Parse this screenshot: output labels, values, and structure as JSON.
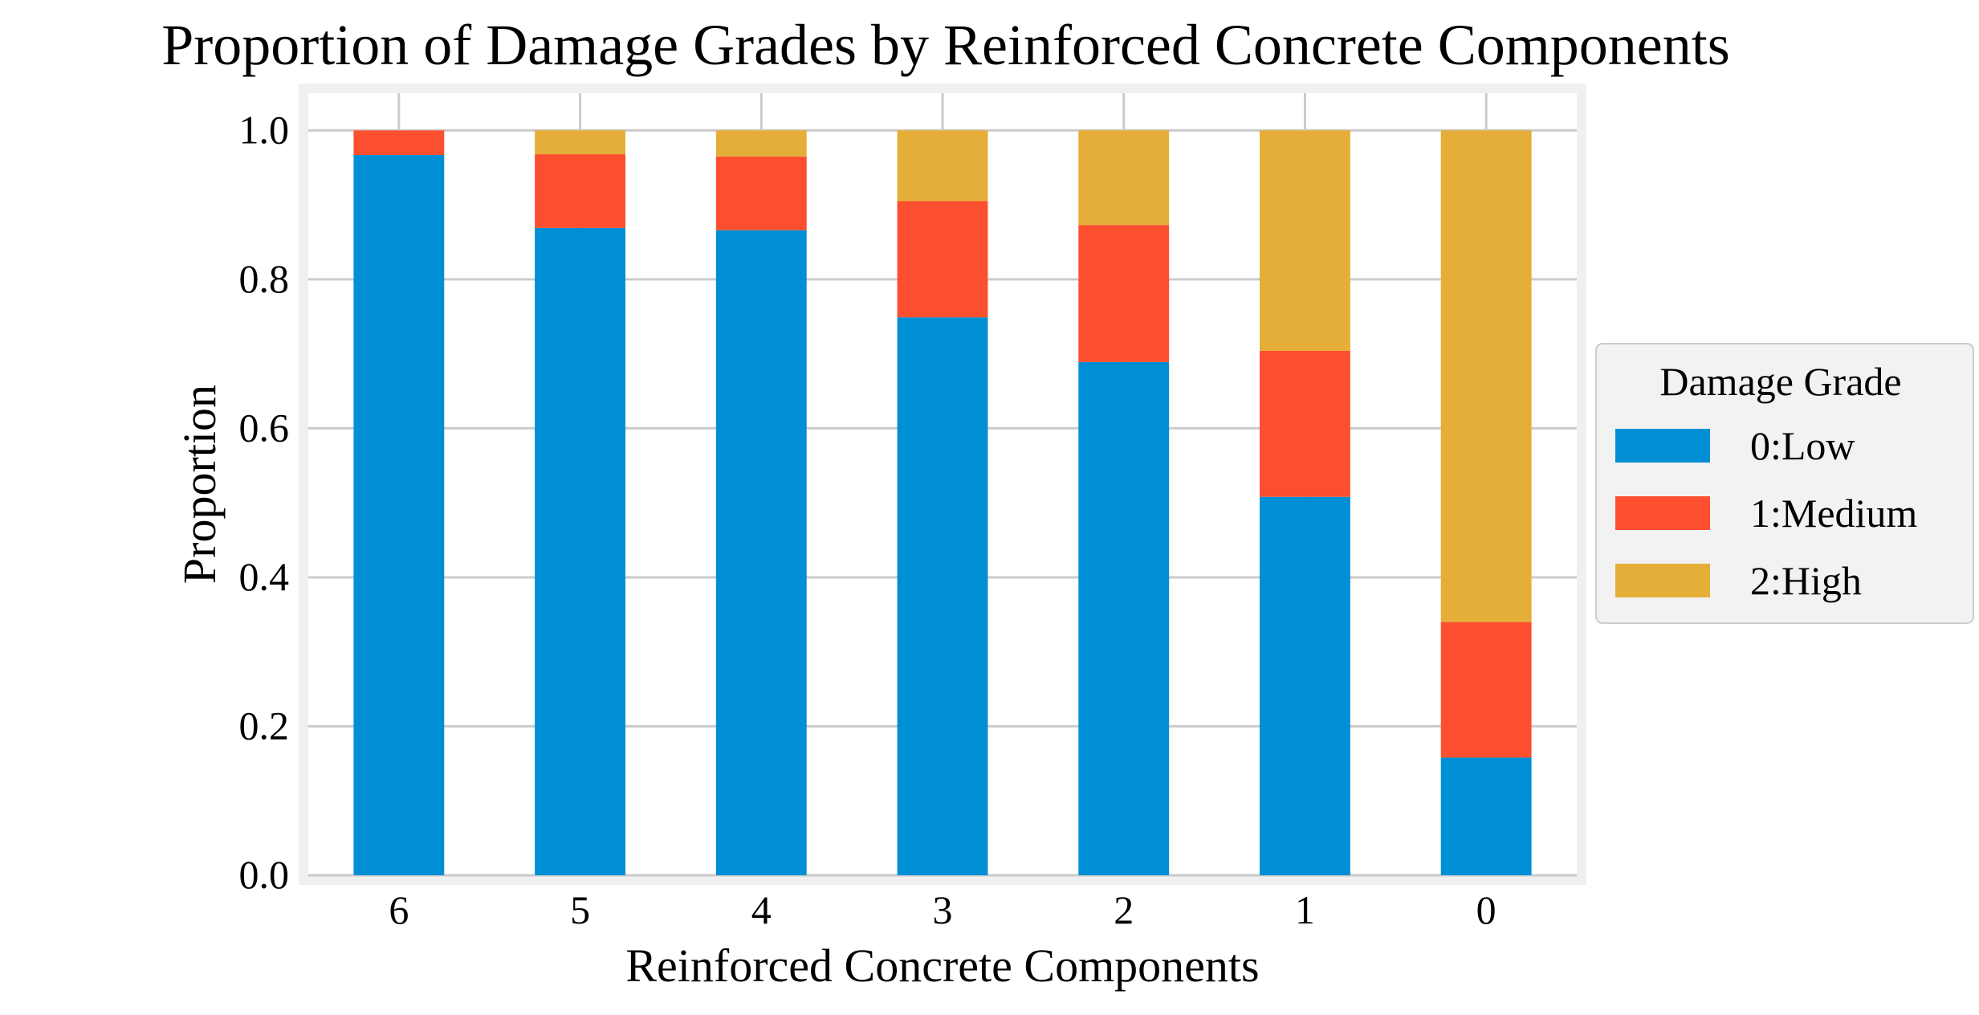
{
  "chart_data": {
    "type": "bar",
    "stacked": true,
    "title": "Proportion of Damage Grades by Reinforced Concrete Components",
    "xlabel": "Reinforced Concrete Components",
    "ylabel": "Proportion",
    "categories": [
      "6",
      "5",
      "4",
      "3",
      "2",
      "1",
      "0"
    ],
    "ylim": [
      0,
      1.05
    ],
    "yticks": [
      "0.0",
      "0.2",
      "0.4",
      "0.6",
      "0.8",
      "1.0"
    ],
    "grid": true,
    "legend": {
      "title": "Damage Grade",
      "placement": "center-right-outside"
    },
    "series": [
      {
        "name": "0:Low",
        "color": "#008fd5",
        "values": [
          0.967,
          0.869,
          0.866,
          0.749,
          0.689,
          0.508,
          0.158
        ]
      },
      {
        "name": "1:Medium",
        "color": "#fc4f30",
        "values": [
          0.033,
          0.099,
          0.099,
          0.156,
          0.184,
          0.196,
          0.182
        ]
      },
      {
        "name": "2:High",
        "color": "#e5ae38",
        "values": [
          0.0,
          0.032,
          0.035,
          0.095,
          0.127,
          0.296,
          0.66
        ]
      }
    ]
  }
}
